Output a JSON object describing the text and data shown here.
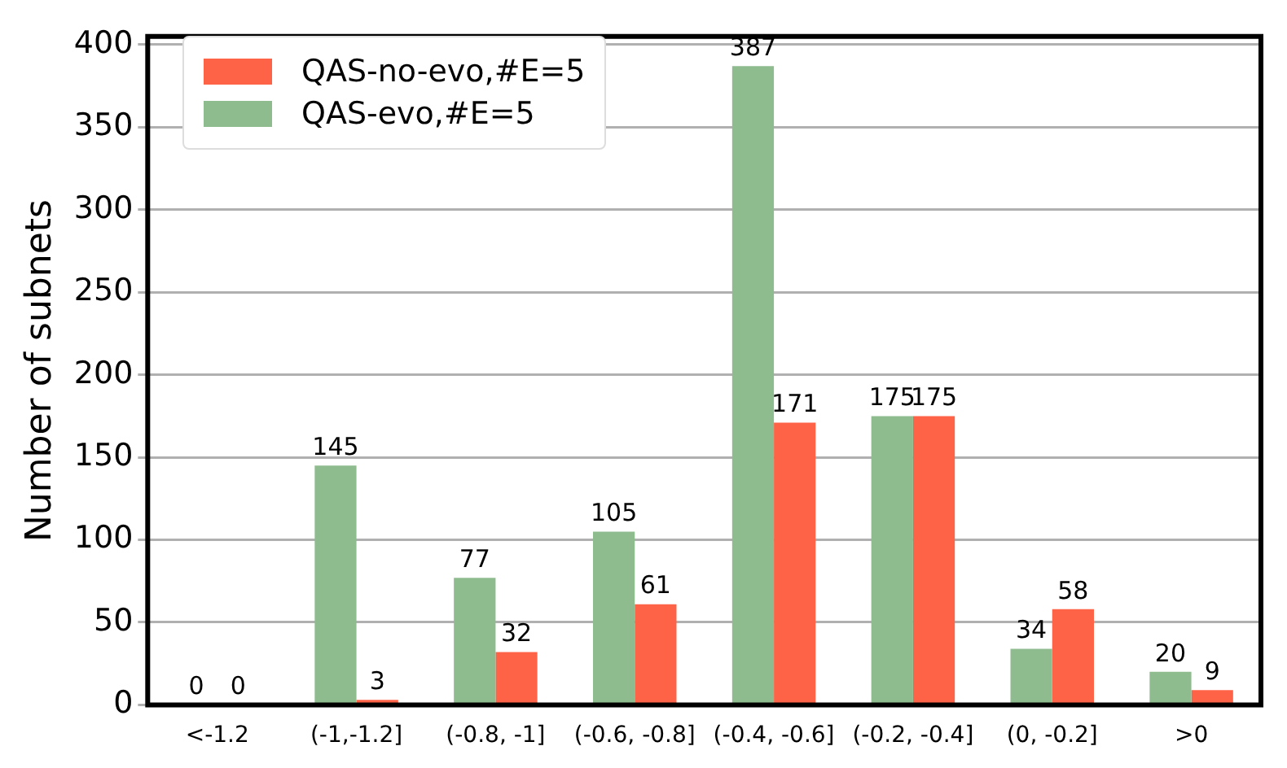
{
  "chart_data": {
    "type": "bar",
    "ylabel": "Number of subnets",
    "categories": [
      "<-1.2",
      "(-1,-1.2]",
      "(-0.8, -1]",
      "(-0.6, -0.8]",
      "(-0.4, -0.6]",
      "(-0.2, -0.4]",
      "(0, -0.2]",
      ">0"
    ],
    "series": [
      {
        "name": "QAS-evo,#E=5",
        "color": "#8fbc8f",
        "values": [
          0,
          145,
          77,
          105,
          387,
          175,
          34,
          20
        ]
      },
      {
        "name": "QAS-no-evo,#E=5",
        "color": "#ff6347",
        "values": [
          0,
          3,
          32,
          61,
          171,
          175,
          58,
          9
        ]
      }
    ],
    "ylim": [
      0,
      405
    ],
    "yticks": [
      0,
      50,
      100,
      150,
      200,
      250,
      300,
      350,
      400
    ],
    "grid": "y",
    "legend": "top left",
    "data_labels": true
  }
}
